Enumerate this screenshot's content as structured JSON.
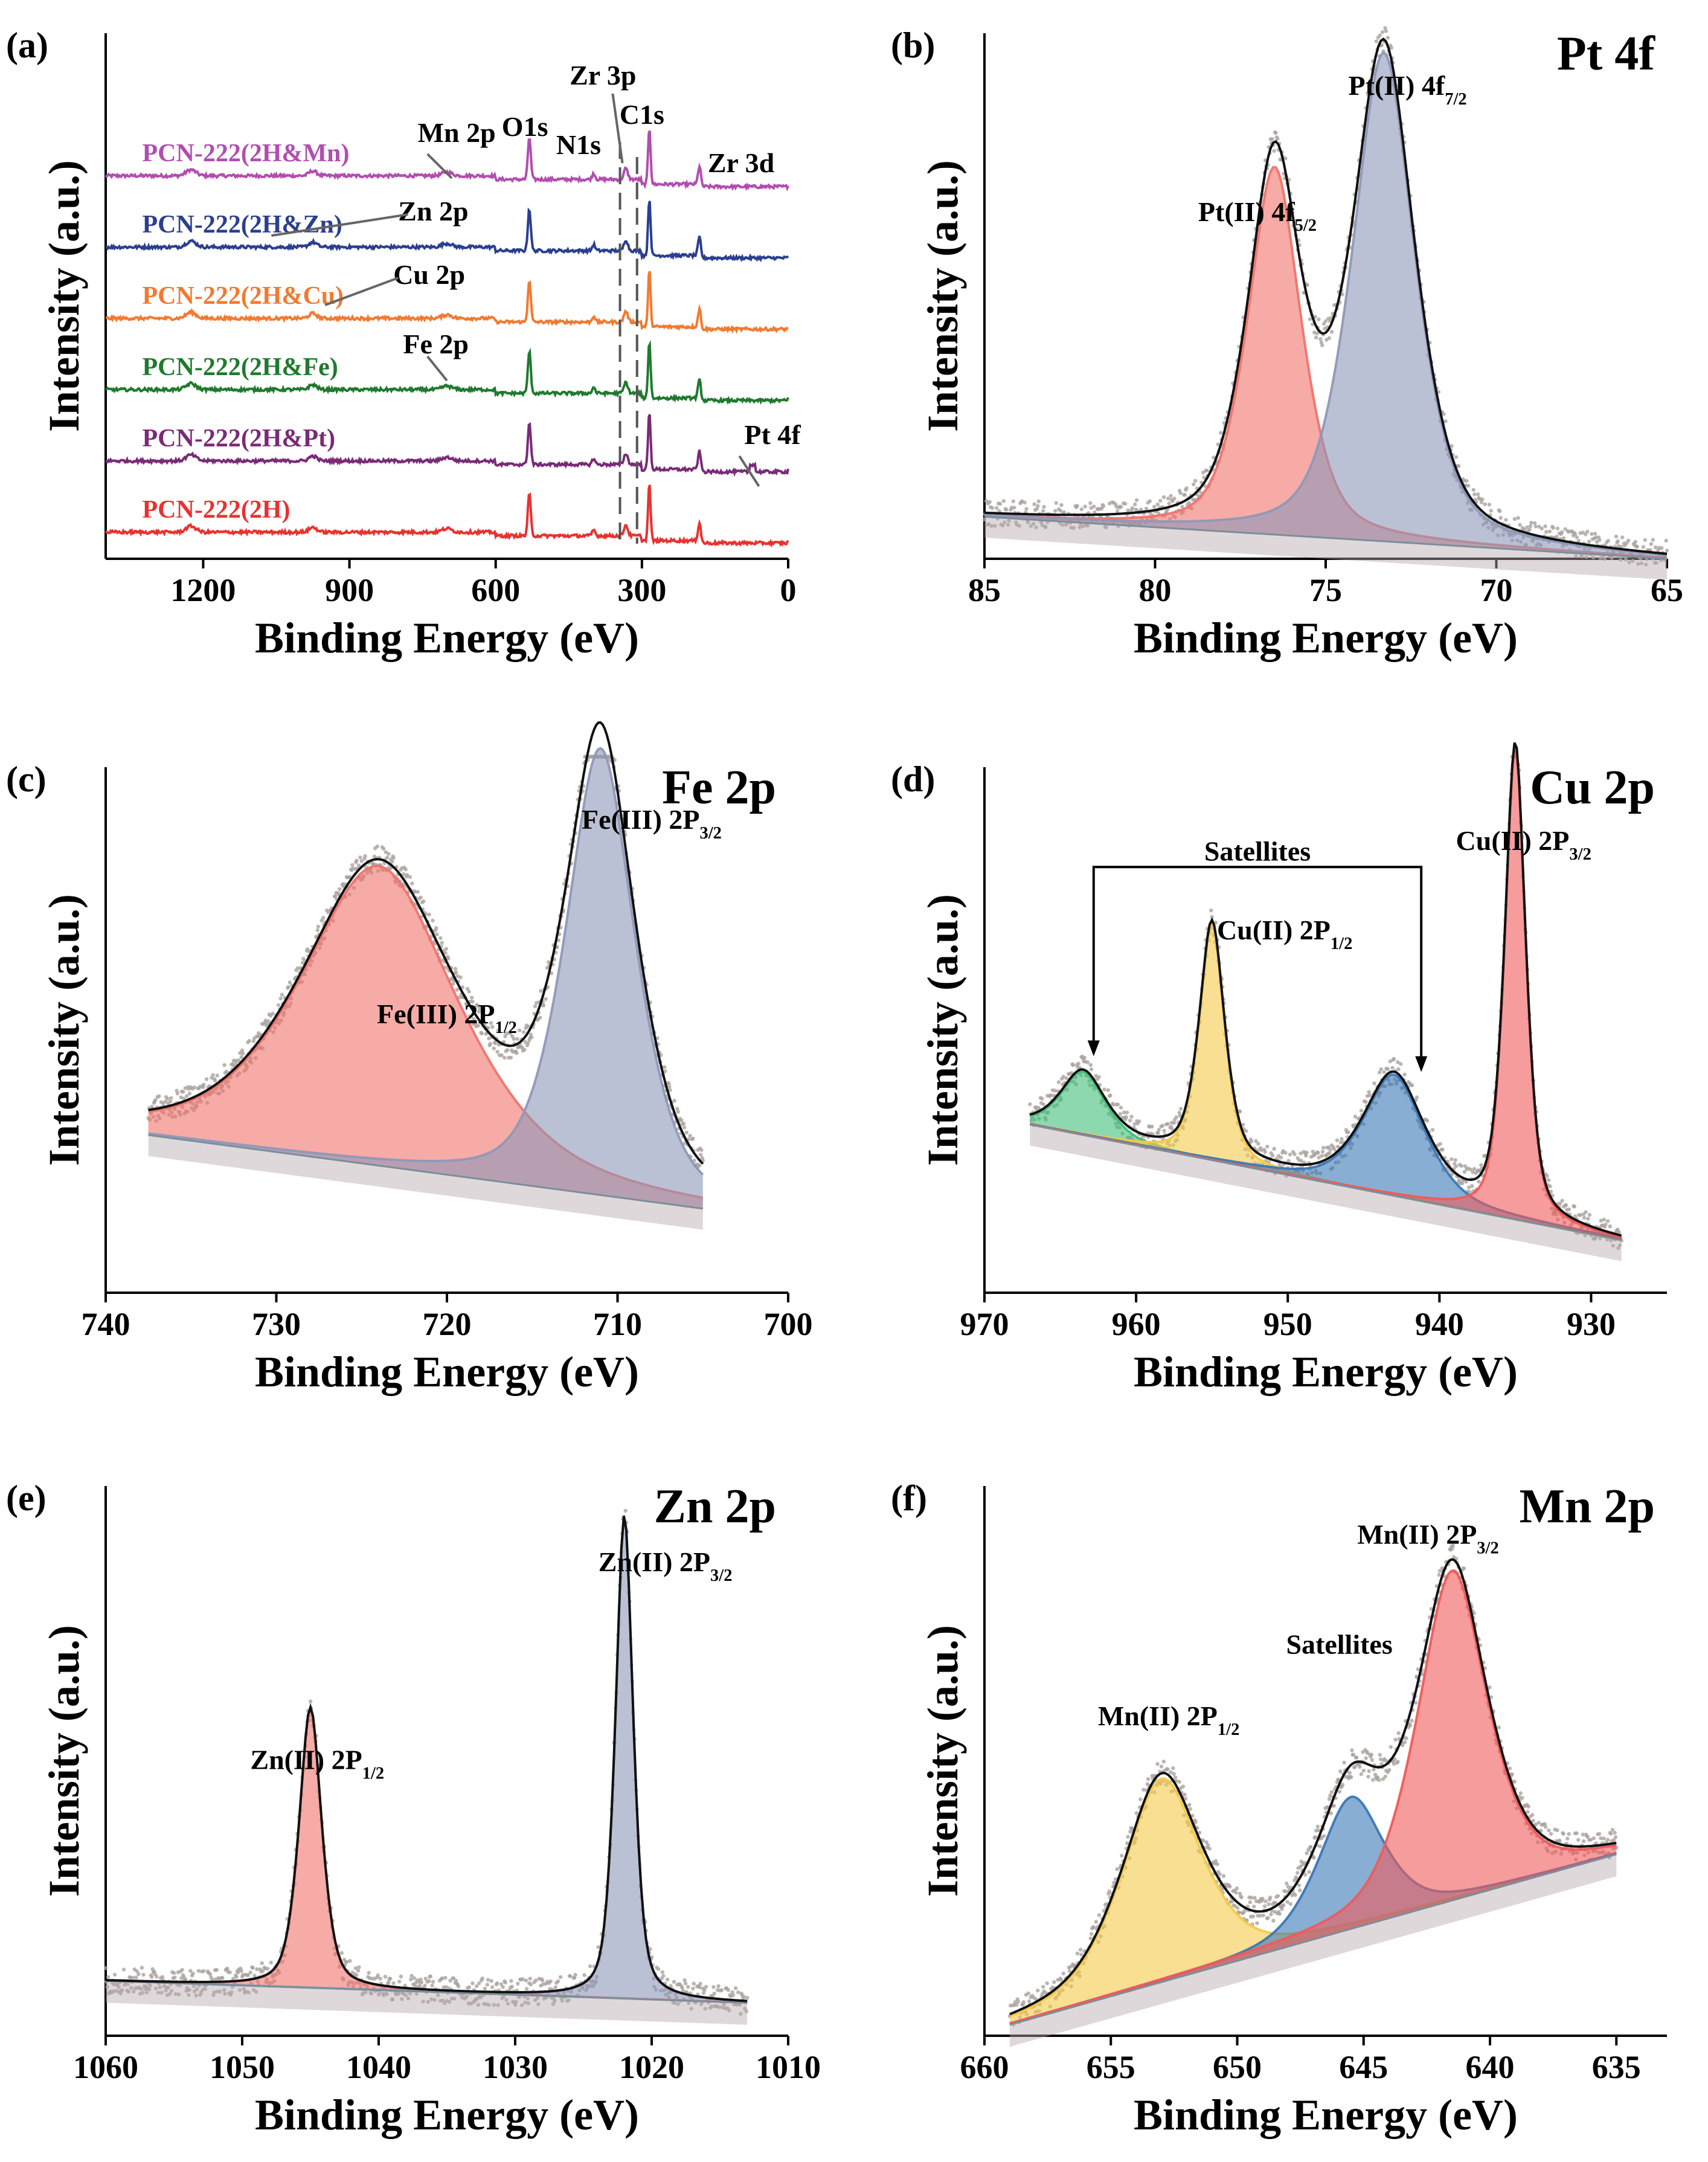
{
  "chart_data": [
    {
      "panel": "(a)",
      "type": "line",
      "title": "",
      "xlabel": "Binding Energy (eV)",
      "ylabel": "Intensity (a.u.)",
      "xlim": [
        1400,
        0
      ],
      "xticks": [
        1200,
        900,
        600,
        300,
        0
      ],
      "xtick_labels": [
        "1200",
        "900",
        "600",
        "300",
        "0"
      ],
      "series": [
        {
          "name": "PCN-222(2H&Mn)",
          "color": "#b24db0",
          "offset": 5
        },
        {
          "name": "PCN-222(2H&Zn)",
          "color": "#2a3f8f",
          "offset": 4
        },
        {
          "name": "PCN-222(2H&Cu)",
          "color": "#f27a30",
          "offset": 3
        },
        {
          "name": "PCN-222(2H&Fe)",
          "color": "#1f7a2e",
          "offset": 2
        },
        {
          "name": "PCN-222(2H&Pt)",
          "color": "#7a2a78",
          "offset": 1
        },
        {
          "name": "PCN-222(2H)",
          "color": "#e8322f",
          "offset": 0
        }
      ],
      "peak_labels": [
        {
          "text": "O1s",
          "x": 531
        },
        {
          "text": "N1s",
          "x": 399
        },
        {
          "text": "Zr 3p",
          "x": 333
        },
        {
          "text": "C1s",
          "x": 284.8
        },
        {
          "text": "Zr 3d",
          "x": 182
        },
        {
          "text": "Mn 2p",
          "x": 641
        },
        {
          "text": "Zn 2p",
          "x": 1022
        },
        {
          "text": "Cu 2p",
          "x": 935
        },
        {
          "text": "Fe 2p",
          "x": 711
        },
        {
          "text": "Pt 4f",
          "x": 73
        }
      ]
    },
    {
      "panel": "(b)",
      "type": "line",
      "title": "Pt 4f",
      "xlabel": "Binding Energy (eV)",
      "ylabel": "Intensity (a.u.)",
      "xlim": [
        85,
        65
      ],
      "xticks": [
        85,
        80,
        75,
        70,
        65
      ],
      "xtick_labels": [
        "85",
        "80",
        "75",
        "70",
        "65"
      ],
      "baseline": [
        [
          85,
          0.08
        ],
        [
          65,
          0.0
        ]
      ],
      "peaks": [
        {
          "name": "Pt(II) 4f5/2",
          "center": 76.5,
          "height": 0.7,
          "width": 0.85,
          "color": "#f0736c"
        },
        {
          "name": "Pt(II) 4f7/2",
          "center": 73.3,
          "height": 0.93,
          "width": 1.0,
          "color": "#8e98b8"
        }
      ],
      "labels": [
        {
          "text": "Pt(II) 4f",
          "sub": "5/2"
        },
        {
          "text": "Pt(II) 4f",
          "sub": "7/2"
        }
      ]
    },
    {
      "panel": "(c)",
      "type": "line",
      "title": "Fe 2p",
      "xlabel": "Binding Energy (eV)",
      "ylabel": "Intensity (a.u.)",
      "xlim": [
        740,
        700
      ],
      "xticks": [
        740,
        730,
        720,
        710,
        700
      ],
      "xtick_labels": [
        "740",
        "730",
        "720",
        "710",
        "700"
      ],
      "baseline": [
        [
          737.5,
          0.3
        ],
        [
          705,
          0.16
        ]
      ],
      "peaks": [
        {
          "name": "Fe(III) 2P1/2",
          "center": 724.0,
          "height": 0.57,
          "width": 5.0,
          "color": "#f0736c"
        },
        {
          "name": "Fe(III) 2P3/2",
          "center": 711.0,
          "height": 0.85,
          "width": 2.2,
          "color": "#8e98b8"
        }
      ],
      "labels": [
        {
          "text": "Fe(III) 2P",
          "sub": "1/2"
        },
        {
          "text": "Fe(III) 2P",
          "sub": "3/2"
        }
      ]
    },
    {
      "panel": "(d)",
      "type": "line",
      "title": "Cu 2p",
      "xlabel": "Binding Energy (eV)",
      "ylabel": "Intensity (a.u.)",
      "xlim": [
        970,
        925
      ],
      "xticks": [
        970,
        960,
        950,
        940,
        930
      ],
      "xtick_labels": [
        "970",
        "960",
        "950",
        "940",
        "930"
      ],
      "baseline": [
        [
          967,
          0.32
        ],
        [
          928,
          0.1
        ]
      ],
      "peaks": [
        {
          "name": "Satellite",
          "center": 963.5,
          "height": 0.12,
          "width": 1.6,
          "color": "#3fbf7a"
        },
        {
          "name": "Cu(II) 2P1/2",
          "center": 955.0,
          "height": 0.45,
          "width": 0.9,
          "color": "#f4c94a"
        },
        {
          "name": "Satellite",
          "center": 943.0,
          "height": 0.23,
          "width": 2.2,
          "color": "#3a78b8"
        },
        {
          "name": "Cu(II) 2P3/2",
          "center": 935.0,
          "height": 0.9,
          "width": 0.75,
          "color": "#f05a5a"
        }
      ],
      "labels": [
        {
          "text": "Satellites",
          "sub": ""
        },
        {
          "text": "Cu(II) 2P",
          "sub": "1/2"
        },
        {
          "text": "Cu(II) 2P",
          "sub": "3/2"
        }
      ]
    },
    {
      "panel": "(e)",
      "type": "line",
      "title": "Zn 2p",
      "xlabel": "Binding Energy (eV)",
      "ylabel": "Intensity (a.u.)",
      "xlim": [
        1060,
        1010
      ],
      "xticks": [
        1060,
        1050,
        1040,
        1030,
        1020,
        1010
      ],
      "xtick_labels": [
        "1060",
        "1050",
        "1040",
        "1030",
        "1020",
        "1010"
      ],
      "baseline": [
        [
          1060,
          0.1
        ],
        [
          1013,
          0.06
        ]
      ],
      "peaks": [
        {
          "name": "Zn(II) 2P1/2",
          "center": 1045.0,
          "height": 0.51,
          "width": 0.9,
          "color": "#f0736c"
        },
        {
          "name": "Zn(II) 2P3/2",
          "center": 1022.0,
          "height": 0.88,
          "width": 0.7,
          "color": "#8e98b8"
        }
      ],
      "labels": [
        {
          "text": "Zn(II) 2P",
          "sub": "1/2"
        },
        {
          "text": "Zn(II) 2P",
          "sub": "3/2"
        }
      ]
    },
    {
      "panel": "(f)",
      "type": "line",
      "title": "Mn 2p",
      "xlabel": "Binding Energy (eV)",
      "ylabel": "Intensity (a.u.)",
      "xlim": [
        660,
        633
      ],
      "xticks": [
        660,
        655,
        650,
        645,
        640,
        635
      ],
      "xtick_labels": [
        "660",
        "655",
        "650",
        "645",
        "640",
        "635"
      ],
      "baseline": [
        [
          659,
          0.02
        ],
        [
          635,
          0.33
        ]
      ],
      "peaks": [
        {
          "name": "Mn(II) 2P1/2",
          "center": 653.0,
          "height": 0.37,
          "width": 1.7,
          "color": "#f4c94a"
        },
        {
          "name": "Satellites",
          "center": 645.5,
          "height": 0.24,
          "width": 1.4,
          "color": "#3a78b8"
        },
        {
          "name": "Mn(II) 2P3/2",
          "center": 641.5,
          "height": 0.6,
          "width": 1.5,
          "color": "#f05a5a"
        }
      ],
      "labels": [
        {
          "text": "Mn(II) 2P",
          "sub": "1/2"
        },
        {
          "text": "Satellites",
          "sub": ""
        },
        {
          "text": "Mn(II) 2P",
          "sub": "3/2"
        }
      ]
    }
  ]
}
